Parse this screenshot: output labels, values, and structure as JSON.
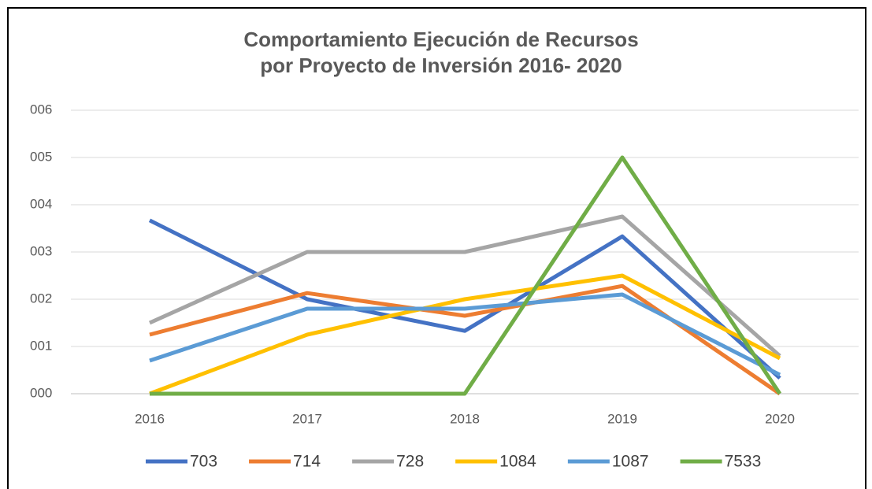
{
  "chart_data": {
    "type": "line",
    "title": [
      "Comportamiento Ejecución de Recursos",
      "por Proyecto de Inversión 2016- 2020"
    ],
    "categories": [
      "2016",
      "2017",
      "2018",
      "2019",
      "2020"
    ],
    "series": [
      {
        "name": "703",
        "color": "#4472c4",
        "values": [
          3.67,
          2.0,
          1.33,
          3.33,
          0.33
        ]
      },
      {
        "name": "714",
        "color": "#ed7d31",
        "values": [
          1.25,
          2.13,
          1.65,
          2.28,
          0
        ]
      },
      {
        "name": "728",
        "color": "#a5a5a5",
        "values": [
          1.5,
          3.0,
          3.0,
          3.75,
          0.8
        ]
      },
      {
        "name": "1084",
        "color": "#ffc000",
        "values": [
          0,
          1.25,
          2.0,
          2.5,
          0.75
        ]
      },
      {
        "name": "1087",
        "color": "#5b9bd5",
        "values": [
          0.7,
          1.8,
          1.8,
          2.1,
          0.4
        ]
      },
      {
        "name": "7533",
        "color": "#70ad47",
        "values": [
          0,
          0,
          0,
          5,
          0
        ]
      }
    ],
    "ylim": [
      0,
      6
    ],
    "yticks": [
      {
        "value": 0,
        "label": "000"
      },
      {
        "value": 1,
        "label": "001"
      },
      {
        "value": 2,
        "label": "002"
      },
      {
        "value": 3,
        "label": "003"
      },
      {
        "value": 4,
        "label": "004"
      },
      {
        "value": 5,
        "label": "005"
      },
      {
        "value": 6,
        "label": "006"
      }
    ],
    "grid": true,
    "legend": "bottom"
  }
}
